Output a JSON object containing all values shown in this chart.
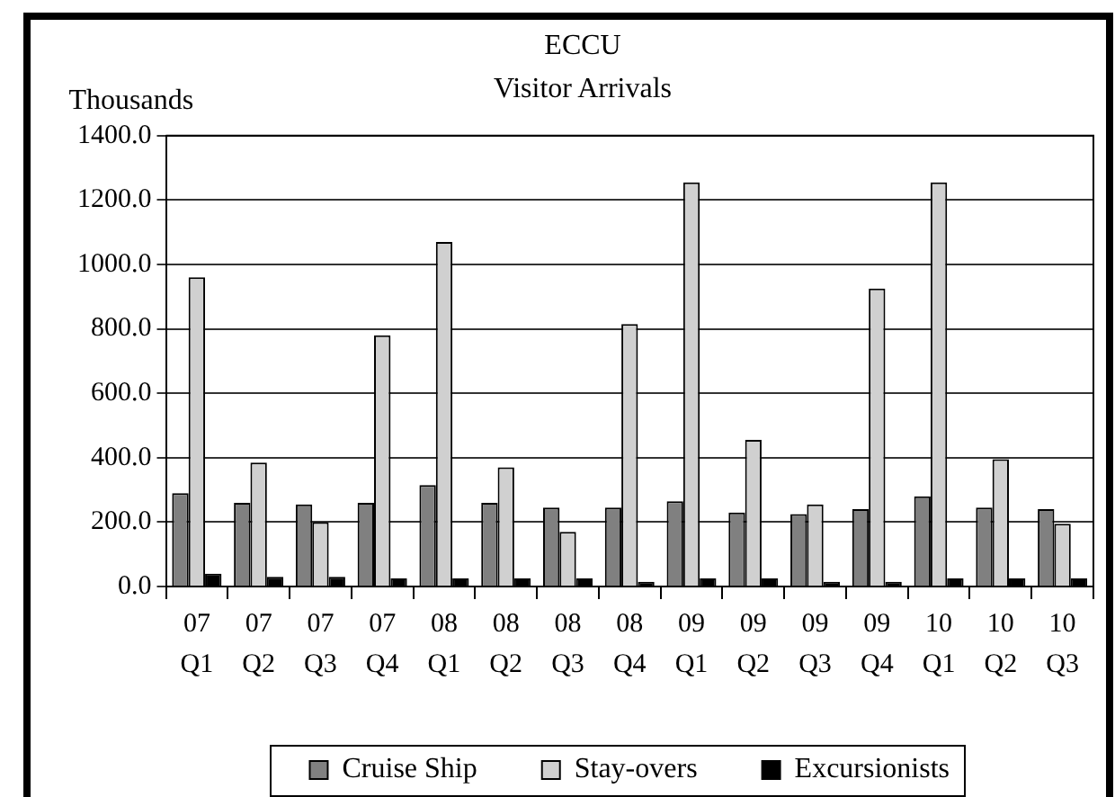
{
  "chart_data": {
    "type": "bar",
    "title": "ECCU",
    "subtitle": "Visitor Arrivals",
    "ylabel": "Thousands",
    "categories": [
      "07\nQ1",
      "07\nQ2",
      "07\nQ3",
      "07\nQ4",
      "08\nQ1",
      "08\nQ2",
      "08\nQ3",
      "08\nQ4",
      "09\nQ1",
      "09\nQ2",
      "09\nQ3",
      "09\nQ4",
      "10\nQ1",
      "10\nQ2",
      "10\nQ3"
    ],
    "series": [
      {
        "name": "Cruise Ship",
        "color": "#808080",
        "values": [
          290,
          260,
          255,
          260,
          315,
          260,
          245,
          245,
          265,
          230,
          225,
          240,
          280,
          245,
          240
        ]
      },
      {
        "name": "Stay-overs",
        "color": "#d0d0d0",
        "values": [
          960,
          385,
          200,
          780,
          1070,
          370,
          170,
          815,
          1255,
          455,
          255,
          925,
          1255,
          395,
          195
        ]
      },
      {
        "name": "Excursionists",
        "color": "#000000",
        "values": [
          40,
          30,
          30,
          25,
          25,
          25,
          25,
          15,
          25,
          25,
          15,
          15,
          25,
          25,
          25
        ]
      }
    ],
    "ylim": [
      0,
      1400
    ],
    "yticks": [
      {
        "value": 0,
        "label": "0.0"
      },
      {
        "value": 200,
        "label": "200.0"
      },
      {
        "value": 400,
        "label": "400.0"
      },
      {
        "value": 600,
        "label": "600.0"
      },
      {
        "value": 800,
        "label": "800.0"
      },
      {
        "value": 1000,
        "label": "1000.0"
      },
      {
        "value": 1200,
        "label": "1200.0"
      },
      {
        "value": 1400,
        "label": "1400.0"
      }
    ],
    "grid": "y",
    "legend": "bottom"
  }
}
